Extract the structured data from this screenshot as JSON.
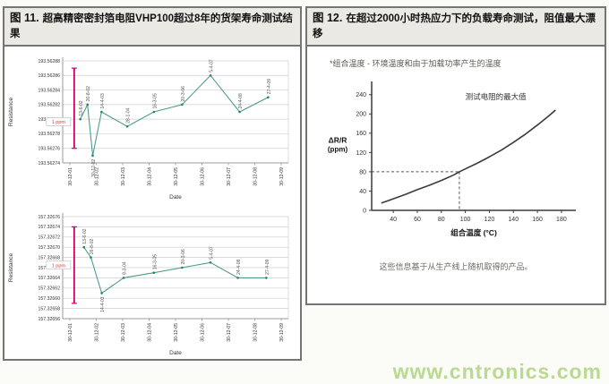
{
  "page": {
    "watermark": "www.cntronics.com"
  },
  "colors": {
    "teal": "#4E9C8D",
    "teal_dark": "#2E7D6E",
    "pink": "#CC0066",
    "ppm_red": "#CC4444",
    "grid": "#CFCFCF",
    "axis": "#999999",
    "text": "#333333",
    "header_bg": "#EBE9E3",
    "border": "#757575",
    "watermark": "#B9DA90",
    "curve": "#3A3A3A"
  },
  "figure11": {
    "tag": "图 11.",
    "title": "超高精密密封箔电阻VHP100超过8年的货架寿命测试结果"
  },
  "figure12": {
    "tag": "图 12.",
    "title": "在超过2000小时热应力下的负载寿命测试，阻值最大漂移",
    "note_top": "*组合温度 - 环境温度和由于加载功率产生的温度",
    "note_bottom": "这些信息基于从生产线上随机取得的产品。"
  },
  "chart_data": [
    {
      "type": "line",
      "name": "shelf-life-sample-1",
      "ylabel": "Resistance",
      "xlabel": "Date",
      "y_ticks": [
        "193.56288",
        "193.56286",
        "193.56284",
        "193.56282",
        "193.56280",
        "193.56278",
        "193.56276",
        "193.56274"
      ],
      "x_ticks": [
        "30-12-01",
        "30-12-02",
        "30-12-03",
        "30-12-04",
        "30-12-05",
        "30-12-06",
        "30-12-07",
        "30-12-08",
        "30-12-09"
      ],
      "band": {
        "x": 0.051,
        "top": 193.56287,
        "bottom": 193.56276,
        "label": "1 ppm",
        "label_y": 0.6
      },
      "points": [
        {
          "x": 0.078,
          "v": 193.5628,
          "label": "13-6-02",
          "lp": "above"
        },
        {
          "x": 0.11,
          "v": 193.56282,
          "label": "26-8-02",
          "lp": "above"
        },
        {
          "x": 0.133,
          "v": 193.56275,
          "label": "30-12-02",
          "lp": "below"
        },
        {
          "x": 0.172,
          "v": 193.56281,
          "label": "14-4-03",
          "lp": "above"
        },
        {
          "x": 0.286,
          "v": 193.56279,
          "label": "28-1-04",
          "lp": "above"
        },
        {
          "x": 0.404,
          "v": 193.56281,
          "label": "16-3-05",
          "lp": "above"
        },
        {
          "x": 0.529,
          "v": 193.56282,
          "label": "20-3-06",
          "lp": "above"
        },
        {
          "x": 0.655,
          "v": 193.56286,
          "label": "5-4-07",
          "lp": "above"
        },
        {
          "x": 0.784,
          "v": 193.56281,
          "label": "24-4-08",
          "lp": "above"
        },
        {
          "x": 0.91,
          "v": 193.56283,
          "label": "27-4-09",
          "lp": "above"
        }
      ]
    },
    {
      "type": "line",
      "name": "shelf-life-sample-2",
      "ylabel": "Resistance",
      "xlabel": "Date",
      "y_ticks": [
        "157.32676",
        "157.32674",
        "157.32672",
        "157.32670",
        "157.32668",
        "157.32666",
        "157.32664",
        "157.32662",
        "157.32660",
        "157.32658",
        "157.32656"
      ],
      "x_ticks": [
        "30-12-01",
        "30-12-02",
        "30-12-03",
        "30-12-04",
        "30-12-05",
        "30-12-06",
        "30-12-07",
        "30-12-08",
        "30-12-09"
      ],
      "band": {
        "x": 0.051,
        "top": 157.32674,
        "bottom": 157.32659,
        "label": "1 ppm",
        "label_y": 0.48
      },
      "points": [
        {
          "x": 0.094,
          "v": 157.3267,
          "label": "13-6-02",
          "lp": "above"
        },
        {
          "x": 0.125,
          "v": 157.32668,
          "label": "26-8-02",
          "lp": "above"
        },
        {
          "x": 0.173,
          "v": 157.32661,
          "label": "14-4-03",
          "lp": "below"
        },
        {
          "x": 0.27,
          "v": 157.32664,
          "label": "8-3-04",
          "lp": "above"
        },
        {
          "x": 0.404,
          "v": 157.32665,
          "label": "16-3-05",
          "lp": "above"
        },
        {
          "x": 0.529,
          "v": 157.32666,
          "label": "20-3-06",
          "lp": "above"
        },
        {
          "x": 0.655,
          "v": 157.32667,
          "label": "5-4-07",
          "lp": "above"
        },
        {
          "x": 0.776,
          "v": 157.32664,
          "label": "24-4-08",
          "lp": "above"
        },
        {
          "x": 0.902,
          "v": 157.32664,
          "label": "27-4-09",
          "lp": "above"
        }
      ]
    },
    {
      "type": "line",
      "name": "load-life-max-drift",
      "x": [
        30,
        40,
        50,
        60,
        70,
        80,
        90,
        95,
        100,
        110,
        120,
        130,
        140,
        150,
        160,
        170,
        175
      ],
      "y": [
        15,
        24,
        33,
        43,
        52,
        62,
        73,
        80,
        86,
        98,
        111,
        125,
        141,
        158,
        177,
        197,
        208
      ],
      "x_ticks": [
        40,
        60,
        80,
        100,
        120,
        140,
        160,
        180
      ],
      "y_ticks": [
        0,
        40,
        80,
        120,
        160,
        200,
        240
      ],
      "xlim": [
        22,
        192
      ],
      "ylim": [
        0,
        260
      ],
      "xlabel": "组合温度 (°C)",
      "ylabel_line1": "ΔR/R",
      "ylabel_line2": "(ppm)",
      "annotation": "测试电阻的最大值",
      "ref": {
        "x": 95,
        "y": 80
      }
    }
  ]
}
